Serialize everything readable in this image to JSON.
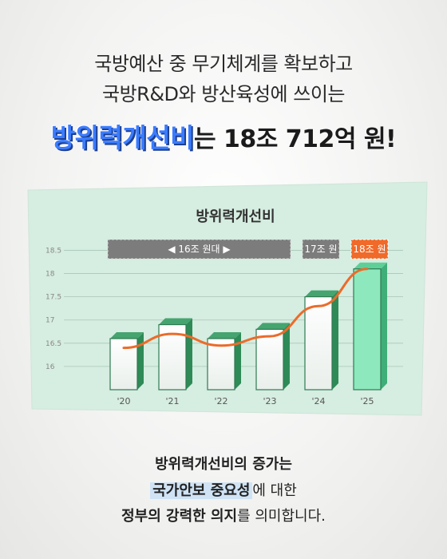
{
  "headline": {
    "line1": "국방예산 중 무기체계를 확보하고",
    "line2": "국방R&D와 방산육성에 쓰이는",
    "highlight": "방위력개선비",
    "rest": "는 18조 712억 원!"
  },
  "chart_data": {
    "type": "bar",
    "title": "방위력개선비",
    "categories": [
      "'20",
      "'21",
      "'22",
      "'23",
      "'24",
      "'25"
    ],
    "values": [
      16.6,
      16.9,
      16.6,
      16.8,
      17.5,
      18.1
    ],
    "line_values": [
      16.4,
      16.7,
      16.45,
      16.65,
      17.3,
      18.1
    ],
    "yticks": [
      "18.5",
      "18",
      "17.5",
      "17",
      "16.5",
      "16"
    ],
    "ylim": [
      15.5,
      18.8
    ],
    "grid": true,
    "annotations": [
      {
        "label": "◀ 16조 원대 ▶",
        "span": [
          "'20",
          "'23"
        ]
      },
      {
        "label": "17조 원",
        "span": [
          "'24"
        ]
      },
      {
        "label": "18조 원",
        "span": [
          "'25"
        ]
      }
    ],
    "colors": {
      "bar_face": "#ffffff",
      "bar_side": "#2e8b57",
      "highlight_bar": "#8ee8bd",
      "line": "#ec6b2a",
      "panel": "#d6ede1"
    }
  },
  "bottom": {
    "line1": "방위력개선비의 증가는",
    "line2_mark": "국가안보 중요성",
    "line2_rest": "에 대한",
    "line3_strong": "정부의 강력한 의지",
    "line3_rest": "를 의미합니다."
  }
}
